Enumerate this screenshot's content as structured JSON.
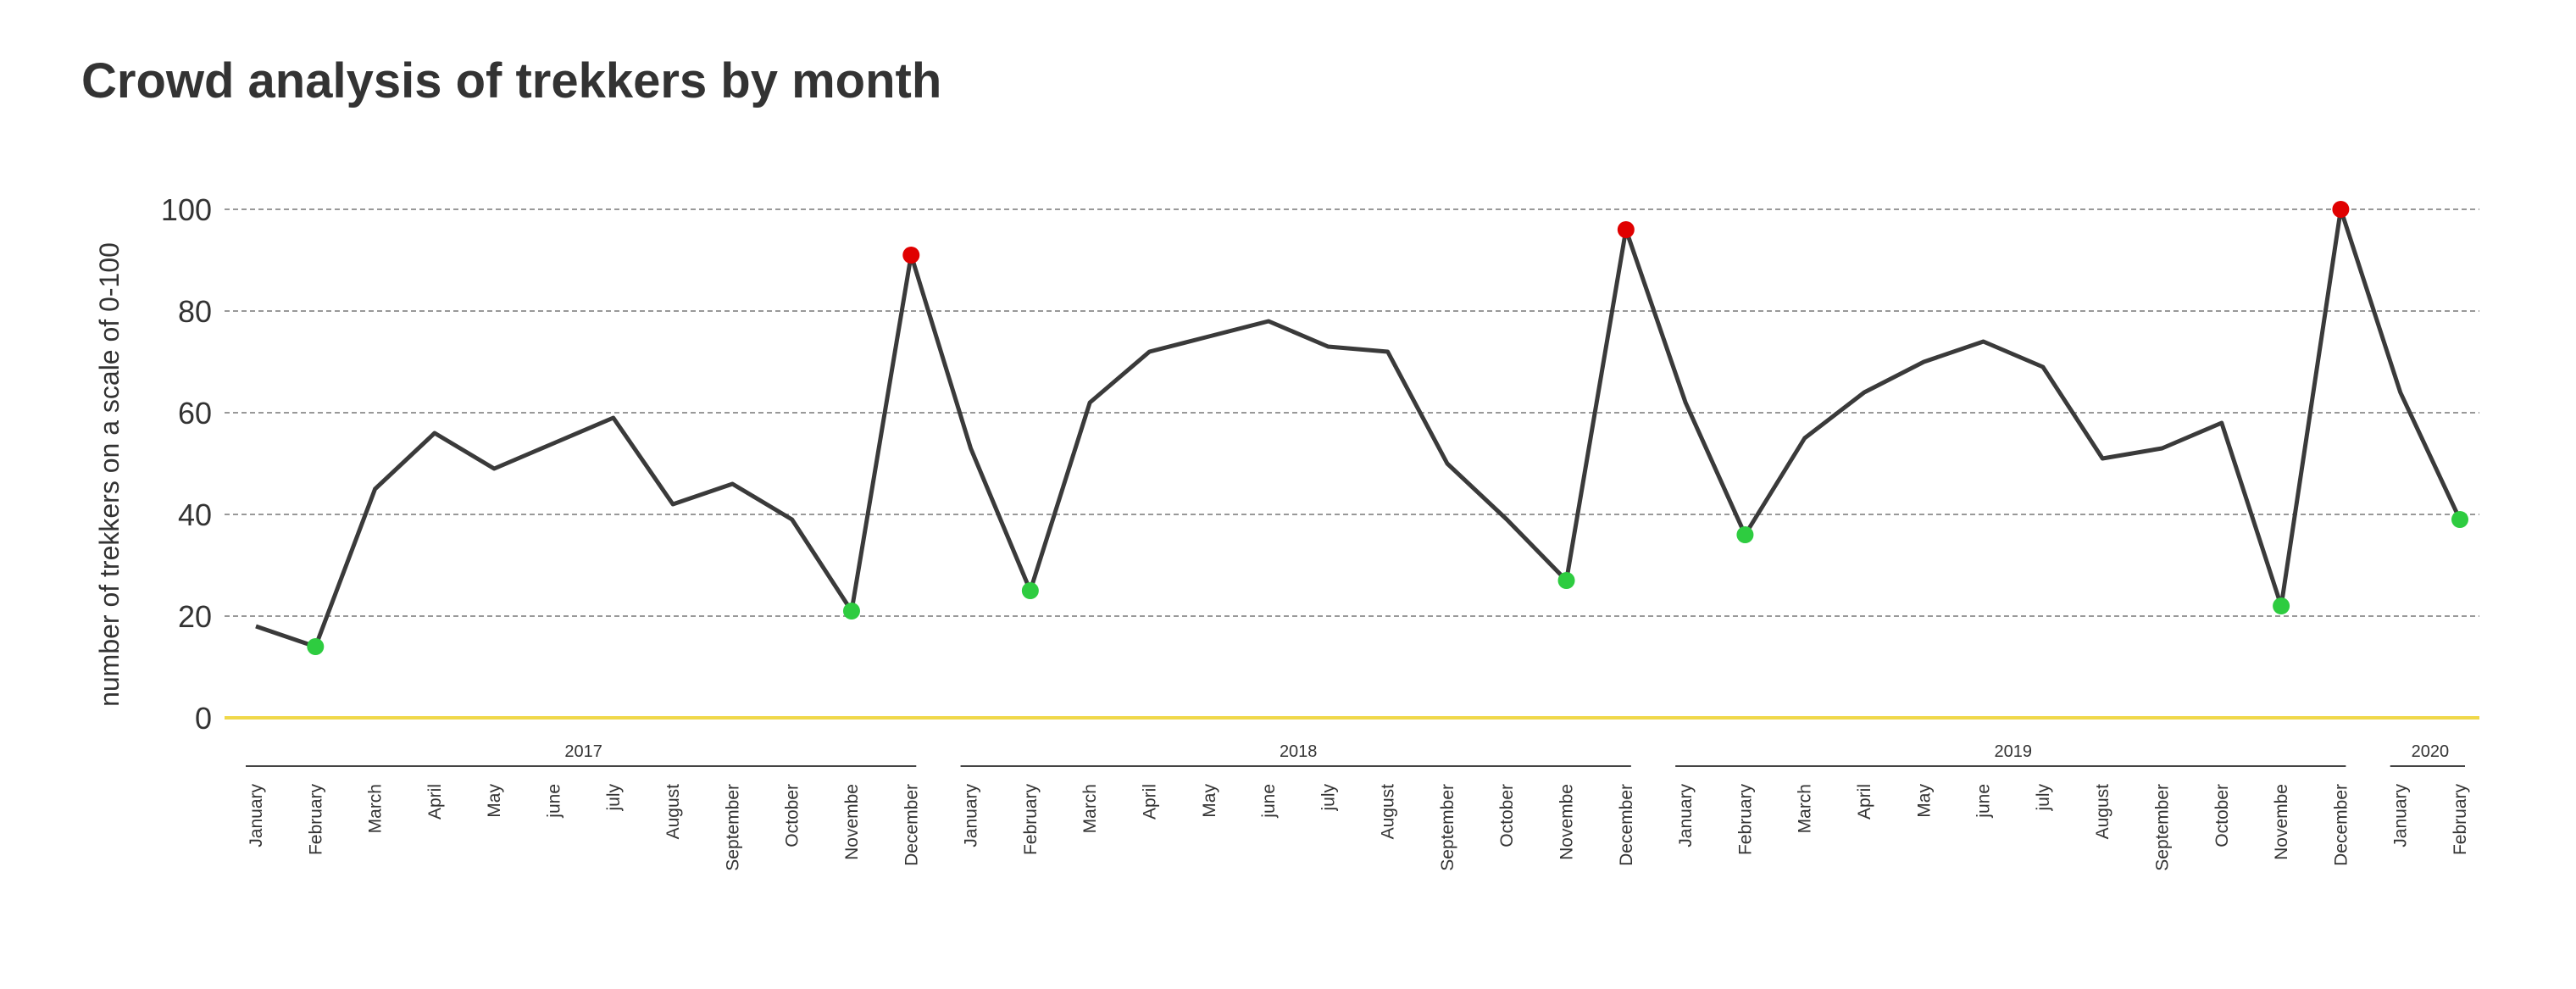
{
  "chart_data": {
    "type": "line",
    "title": "Crowd analysis of trekkers by month",
    "y_label": "number of trekkers on a scale of 0-100",
    "groups": [
      {
        "name": "2017",
        "categories": [
          "January",
          "February",
          "March",
          "April",
          "May",
          "june",
          "july",
          "August",
          "September",
          "October",
          "Novembe",
          "December"
        ]
      },
      {
        "name": "2018",
        "categories": [
          "January",
          "February",
          "March",
          "April",
          "May",
          "june",
          "july",
          "August",
          "September",
          "October",
          "Novembe",
          "December"
        ]
      },
      {
        "name": "2019",
        "categories": [
          "January",
          "February",
          "March",
          "April",
          "May",
          "june",
          "july",
          "August",
          "September",
          "October",
          "Novembe",
          "December"
        ]
      },
      {
        "name": "2020",
        "categories": [
          "January",
          "February"
        ]
      }
    ],
    "values": [
      18,
      14,
      45,
      56,
      49,
      54,
      59,
      42,
      46,
      39,
      21,
      91,
      53,
      25,
      62,
      72,
      75,
      78,
      73,
      72,
      50,
      39,
      27,
      96,
      62,
      36,
      55,
      64,
      70,
      74,
      69,
      51,
      53,
      58,
      22,
      100,
      64,
      39
    ],
    "color": "#3a3a3a",
    "point_colors": [
      null,
      "#2ecc40",
      null,
      null,
      null,
      null,
      null,
      null,
      null,
      null,
      "#2ecc40",
      "#e00000",
      null,
      "#2ecc40",
      null,
      null,
      null,
      null,
      null,
      null,
      null,
      null,
      "#2ecc40",
      "#e00000",
      null,
      "#2ecc40",
      null,
      null,
      null,
      null,
      null,
      null,
      null,
      null,
      "#2ecc40",
      "#e00000",
      null,
      "#2ecc40"
    ],
    "baseline_color": "#f0d84a",
    "ylim": [
      0,
      100
    ],
    "yticks": [
      0,
      20,
      40,
      60,
      80,
      100
    ],
    "grid": true
  }
}
